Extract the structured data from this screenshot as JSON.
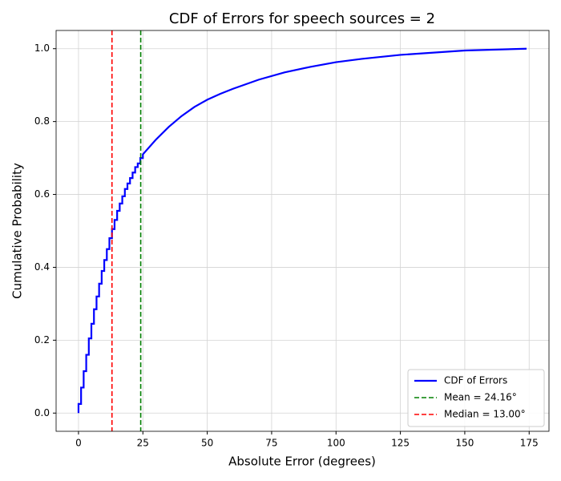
{
  "chart_data": {
    "type": "line",
    "title": "CDF of Errors for speech sources = 2",
    "xlabel": "Absolute Error (degrees)",
    "ylabel": "Cumulative Probability",
    "xlim": [
      -8.7,
      182.7
    ],
    "ylim": [
      -0.05,
      1.05
    ],
    "xticks": [
      0,
      25,
      50,
      75,
      100,
      125,
      150,
      175
    ],
    "yticks": [
      {
        "value": 0,
        "label": "0.0"
      },
      0.2,
      0.4,
      0.6,
      0.8,
      {
        "value": 1,
        "label": "1.0"
      }
    ],
    "grid": true,
    "legend": "lower right",
    "series": [
      {
        "name": "CDF of Errors",
        "color": "#0000ff",
        "x": [
          0,
          0,
          1,
          1,
          2,
          2,
          3,
          3,
          4,
          4,
          5,
          5,
          6,
          6,
          7,
          7,
          8,
          8,
          9,
          9,
          10,
          10,
          11,
          11,
          12,
          12,
          13,
          13,
          14,
          14,
          15,
          15,
          16,
          16,
          17,
          17,
          18,
          18,
          19,
          19,
          20,
          20,
          21,
          21,
          22,
          22,
          23,
          23,
          24,
          24,
          25,
          25,
          30,
          35,
          40,
          45,
          50,
          55,
          60,
          70,
          80,
          90,
          100,
          110,
          125,
          150,
          174
        ],
        "values": [
          0,
          0.025,
          0.025,
          0.07,
          0.07,
          0.115,
          0.115,
          0.16,
          0.16,
          0.205,
          0.205,
          0.245,
          0.245,
          0.285,
          0.285,
          0.32,
          0.32,
          0.355,
          0.355,
          0.39,
          0.39,
          0.42,
          0.42,
          0.45,
          0.45,
          0.48,
          0.48,
          0.505,
          0.505,
          0.53,
          0.53,
          0.555,
          0.555,
          0.575,
          0.575,
          0.595,
          0.595,
          0.615,
          0.615,
          0.63,
          0.63,
          0.645,
          0.645,
          0.66,
          0.66,
          0.675,
          0.675,
          0.685,
          0.685,
          0.7,
          0.7,
          0.71,
          0.75,
          0.785,
          0.815,
          0.84,
          0.86,
          0.876,
          0.89,
          0.915,
          0.935,
          0.95,
          0.963,
          0.972,
          0.983,
          0.995,
          1.0
        ]
      }
    ],
    "vlines": [
      {
        "name": "Mean = 24.16°",
        "value": 24.16,
        "color": "#008000"
      },
      {
        "name": "Median = 13.00°",
        "value": 13.0,
        "color": "#ff0000"
      }
    ]
  }
}
